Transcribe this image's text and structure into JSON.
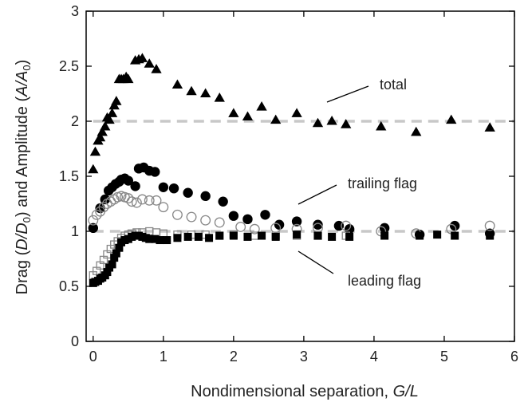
{
  "chart_data": {
    "type": "scatter",
    "title": "",
    "xlabel": "Nondimensional separation, G/L",
    "ylabel": "Drag (D/D0) and Amplitude (A/A0)",
    "xlim": [
      -0.1,
      6
    ],
    "ylim": [
      0,
      3
    ],
    "xticks": [
      0,
      1,
      2,
      3,
      4,
      5,
      6
    ],
    "yticks": [
      0,
      0.5,
      1,
      1.5,
      2,
      2.5,
      3
    ],
    "xtick_labels": [
      "0",
      "1",
      "2",
      "3",
      "4",
      "5",
      "6"
    ],
    "ytick_labels": [
      "0",
      "0.5",
      "1",
      "1.5",
      "2",
      "2.5",
      "3"
    ],
    "grid": false,
    "reference_lines": [
      1,
      2
    ],
    "annotations": {
      "total": "total",
      "trailing": "trailing flag",
      "leading": "leading flag"
    },
    "colors": {
      "markers": "#000000",
      "open_markers": "#888888",
      "reference_lines": "#c8c8c8"
    },
    "series": [
      {
        "marker": "filled-triangle",
        "x": [
          0.0,
          0.03,
          0.07,
          0.1,
          0.13,
          0.17,
          0.2,
          0.23,
          0.27,
          0.3,
          0.33,
          0.37,
          0.4,
          0.43,
          0.47,
          0.5,
          0.6,
          0.65,
          0.7,
          0.8,
          0.9,
          1.2,
          1.4,
          1.6,
          1.8,
          2.0,
          2.2,
          2.4,
          2.6,
          2.9,
          3.2,
          3.4,
          3.6,
          4.1,
          4.6,
          5.1,
          5.65
        ],
        "y": [
          1.56,
          1.72,
          1.82,
          1.85,
          1.9,
          1.95,
          2.03,
          2.01,
          2.07,
          2.14,
          2.18,
          2.38,
          2.38,
          2.38,
          2.4,
          2.38,
          2.55,
          2.56,
          2.57,
          2.52,
          2.47,
          2.33,
          2.27,
          2.25,
          2.21,
          2.07,
          2.04,
          2.13,
          2.01,
          2.07,
          1.98,
          2.0,
          1.97,
          1.95,
          1.9,
          2.01,
          1.94
        ]
      },
      {
        "marker": "filled-circle",
        "x": [
          0.0,
          0.1,
          0.17,
          0.22,
          0.27,
          0.32,
          0.37,
          0.4,
          0.45,
          0.5,
          0.6,
          0.65,
          0.72,
          0.8,
          0.88,
          1.0,
          1.15,
          1.35,
          1.6,
          1.85,
          2.0,
          2.2,
          2.45,
          2.65,
          2.9,
          3.2,
          3.5,
          3.65,
          4.15,
          4.65,
          5.15,
          5.65
        ],
        "y": [
          1.03,
          1.21,
          1.29,
          1.37,
          1.4,
          1.43,
          1.45,
          1.47,
          1.48,
          1.46,
          1.41,
          1.57,
          1.58,
          1.55,
          1.54,
          1.4,
          1.39,
          1.35,
          1.32,
          1.27,
          1.14,
          1.11,
          1.15,
          1.06,
          1.09,
          1.06,
          1.05,
          1.02,
          1.03,
          0.97,
          1.05,
          0.98
        ]
      },
      {
        "marker": "open-circle",
        "x": [
          0.0,
          0.05,
          0.1,
          0.15,
          0.2,
          0.25,
          0.3,
          0.35,
          0.4,
          0.45,
          0.5,
          0.55,
          0.62,
          0.7,
          0.8,
          0.9,
          1.0,
          1.2,
          1.4,
          1.6,
          1.8,
          2.1,
          2.3,
          2.6,
          2.9,
          3.2,
          3.6,
          4.1,
          4.6,
          5.1,
          5.65
        ],
        "y": [
          1.1,
          1.15,
          1.18,
          1.22,
          1.25,
          1.27,
          1.29,
          1.31,
          1.32,
          1.31,
          1.3,
          1.27,
          1.26,
          1.29,
          1.28,
          1.28,
          1.22,
          1.15,
          1.13,
          1.1,
          1.08,
          1.04,
          1.02,
          1.03,
          1.02,
          1.03,
          1.05,
          1.0,
          0.98,
          1.02,
          1.05
        ]
      },
      {
        "marker": "open-square",
        "x": [
          0.0,
          0.05,
          0.1,
          0.15,
          0.2,
          0.25,
          0.3,
          0.35,
          0.4,
          0.45,
          0.5,
          0.55,
          0.62,
          0.7,
          0.8,
          0.9,
          1.0,
          1.2,
          1.4,
          1.6,
          1.8,
          2.0,
          2.3,
          2.6,
          2.9,
          3.2,
          3.6
        ],
        "y": [
          0.6,
          0.64,
          0.69,
          0.74,
          0.79,
          0.84,
          0.88,
          0.91,
          0.94,
          0.96,
          0.97,
          0.98,
          0.99,
          0.99,
          1.0,
          0.99,
          0.98,
          0.97,
          0.97,
          0.97,
          0.96,
          0.97,
          0.96,
          0.96,
          0.96,
          0.96,
          0.96
        ]
      },
      {
        "marker": "filled-square",
        "x": [
          0.0,
          0.03,
          0.07,
          0.1,
          0.13,
          0.17,
          0.2,
          0.23,
          0.27,
          0.3,
          0.33,
          0.37,
          0.4,
          0.45,
          0.5,
          0.55,
          0.6,
          0.65,
          0.7,
          0.75,
          0.8,
          0.88,
          0.95,
          1.05,
          1.2,
          1.35,
          1.5,
          1.65,
          1.8,
          2.0,
          2.2,
          2.4,
          2.6,
          2.9,
          3.2,
          3.4,
          3.65,
          4.15,
          4.65,
          4.9,
          5.15,
          5.65
        ],
        "y": [
          0.53,
          0.54,
          0.55,
          0.57,
          0.58,
          0.6,
          0.63,
          0.67,
          0.7,
          0.76,
          0.8,
          0.85,
          0.9,
          0.92,
          0.93,
          0.95,
          0.96,
          0.96,
          0.95,
          0.94,
          0.93,
          0.93,
          0.92,
          0.92,
          0.94,
          0.95,
          0.95,
          0.94,
          0.96,
          0.96,
          0.95,
          0.96,
          0.95,
          0.97,
          0.96,
          0.95,
          0.95,
          0.96,
          0.96,
          0.97,
          0.96,
          0.96
        ]
      }
    ]
  }
}
